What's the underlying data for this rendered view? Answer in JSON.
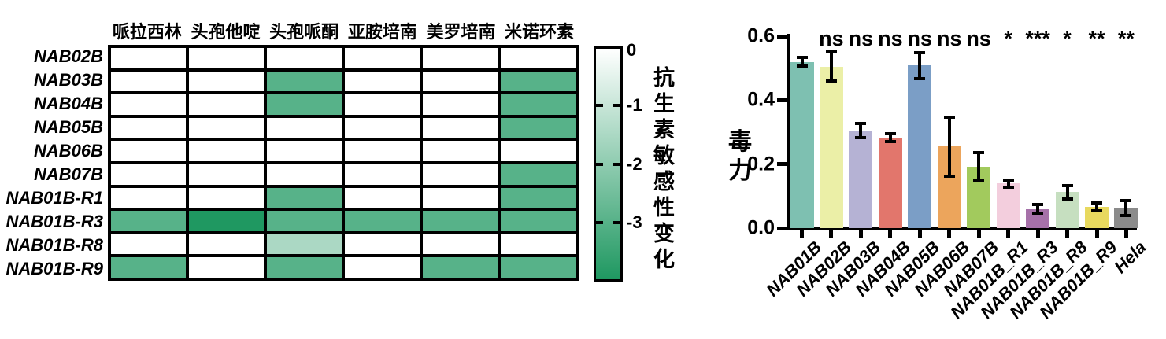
{
  "chart_data": [
    {
      "type": "heatmap",
      "name": "antibiotic-sensitivity-heatmap",
      "columns": [
        "哌拉西林",
        "头孢他啶",
        "头孢哌酮",
        "亚胺培南",
        "美罗培南",
        "米诺环素"
      ],
      "rows": [
        "NAB02B",
        "NAB03B",
        "NAB04B",
        "NAB05B",
        "NAB06B",
        "NAB07B",
        "NAB01B-R1",
        "NAB01B-R3",
        "NAB01B-R8",
        "NAB01B-R9"
      ],
      "values": [
        [
          0,
          0,
          0,
          0,
          0,
          0
        ],
        [
          0,
          0,
          -3,
          0,
          0,
          -3
        ],
        [
          0,
          0,
          -3,
          0,
          0,
          -3
        ],
        [
          0,
          0,
          0,
          0,
          0,
          -3
        ],
        [
          0,
          0,
          0,
          0,
          0,
          0
        ],
        [
          0,
          0,
          0,
          0,
          0,
          -3
        ],
        [
          0,
          0,
          -3,
          0,
          0,
          -3
        ],
        [
          -3,
          -4,
          -3,
          -3,
          -3,
          -3
        ],
        [
          0,
          0,
          -1.5,
          0,
          0,
          0
        ],
        [
          -3,
          0,
          -3,
          0,
          -3,
          -3
        ]
      ],
      "colorbar": {
        "label": "抗生素敏感性变化",
        "ticks": [
          "0",
          "-1",
          "-2",
          "-3"
        ],
        "tick_values": [
          0,
          -1,
          -2,
          -3
        ],
        "max": 0,
        "min": -4,
        "color_max": "#ffffff",
        "color_min": "#1f9861"
      },
      "grid_line_color": "#000000"
    },
    {
      "type": "bar",
      "name": "toxicity-bar-chart",
      "ylabel": "毒力",
      "ylim": [
        0,
        0.6
      ],
      "yticks": [
        "0.0",
        "0.2",
        "0.4",
        "0.6"
      ],
      "ytick_values": [
        0,
        0.2,
        0.4,
        0.6
      ],
      "categories": [
        "NAB01B",
        "NAB02B",
        "NAB03B",
        "NAB04B",
        "NAB05B",
        "NAB06B",
        "NAB07B",
        "NAB01B_R1",
        "NAB01B_R3",
        "NAB01B_R8",
        "NAB01B_R9",
        "Hela"
      ],
      "values": [
        0.52,
        0.505,
        0.305,
        0.283,
        0.508,
        0.255,
        0.193,
        0.14,
        0.06,
        0.112,
        0.067,
        0.062
      ],
      "errors": [
        0.008,
        0.04,
        0.017,
        0.008,
        0.035,
        0.088,
        0.037,
        0.006,
        0.008,
        0.016,
        0.008,
        0.018
      ],
      "significance": [
        "",
        "ns",
        "ns",
        "ns",
        "ns",
        "ns",
        "ns",
        "*",
        "***",
        "*",
        "**",
        "**"
      ],
      "bar_colors": [
        "#7ec0b1",
        "#ebefa7",
        "#b5b2d4",
        "#e2766c",
        "#7b9ec6",
        "#eca55c",
        "#a2ca5d",
        "#f3cedd",
        "#a671a9",
        "#c6dfc0",
        "#e8d95f",
        "#8b8b8b"
      ],
      "error_color": "#000000",
      "legend": "none",
      "grid": "off"
    }
  ]
}
